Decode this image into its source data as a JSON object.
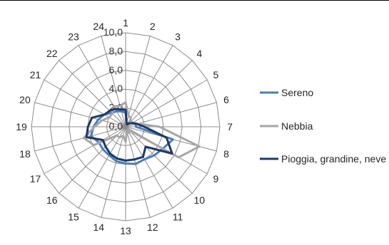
{
  "chart_data": {
    "type": "radar",
    "categories": [
      "1",
      "2",
      "3",
      "4",
      "5",
      "6",
      "7",
      "8",
      "9",
      "10",
      "11",
      "12",
      "13",
      "14",
      "15",
      "16",
      "17",
      "18",
      "19",
      "20",
      "21",
      "22",
      "23",
      "24"
    ],
    "r_ticks": [
      "0,0",
      "2,0",
      "4,0",
      "6,0",
      "8,0",
      "10,0"
    ],
    "r_range": [
      0,
      10
    ],
    "grid": true,
    "legend_position": "right",
    "series": [
      {
        "name": "Sereno",
        "color": "#4A7EBB",
        "values": [
          1.5,
          0.3,
          0.3,
          0.6,
          0.9,
          1.1,
          1.1,
          5.2,
          4.6,
          4.3,
          4.0,
          4.1,
          3.9,
          3.8,
          3.5,
          3.4,
          3.3,
          3.8,
          3.4,
          3.0,
          2.6,
          2.1,
          1.9,
          1.7
        ]
      },
      {
        "name": "Nebbia",
        "color": "#A6A6A6",
        "values": [
          2.6,
          1.2,
          1.1,
          0.6,
          0.9,
          1.3,
          3.6,
          8.1,
          6.5,
          0.5,
          0.8,
          0.5,
          1.6,
          1.0,
          1.3,
          1.3,
          3.9,
          4.6,
          3.3,
          2.6,
          2.0,
          2.0,
          2.5,
          2.3
        ]
      },
      {
        "name": "Pioggia, grandine, neve",
        "color": "#1F3864",
        "values": [
          1.8,
          0.4,
          0.3,
          0.5,
          0.8,
          1.2,
          2.0,
          4.5,
          5.7,
          3.0,
          3.7,
          3.6,
          3.6,
          3.5,
          3.3,
          3.0,
          2.8,
          4.3,
          4.0,
          3.7,
          2.6,
          2.4,
          2.2,
          1.9
        ]
      }
    ]
  }
}
